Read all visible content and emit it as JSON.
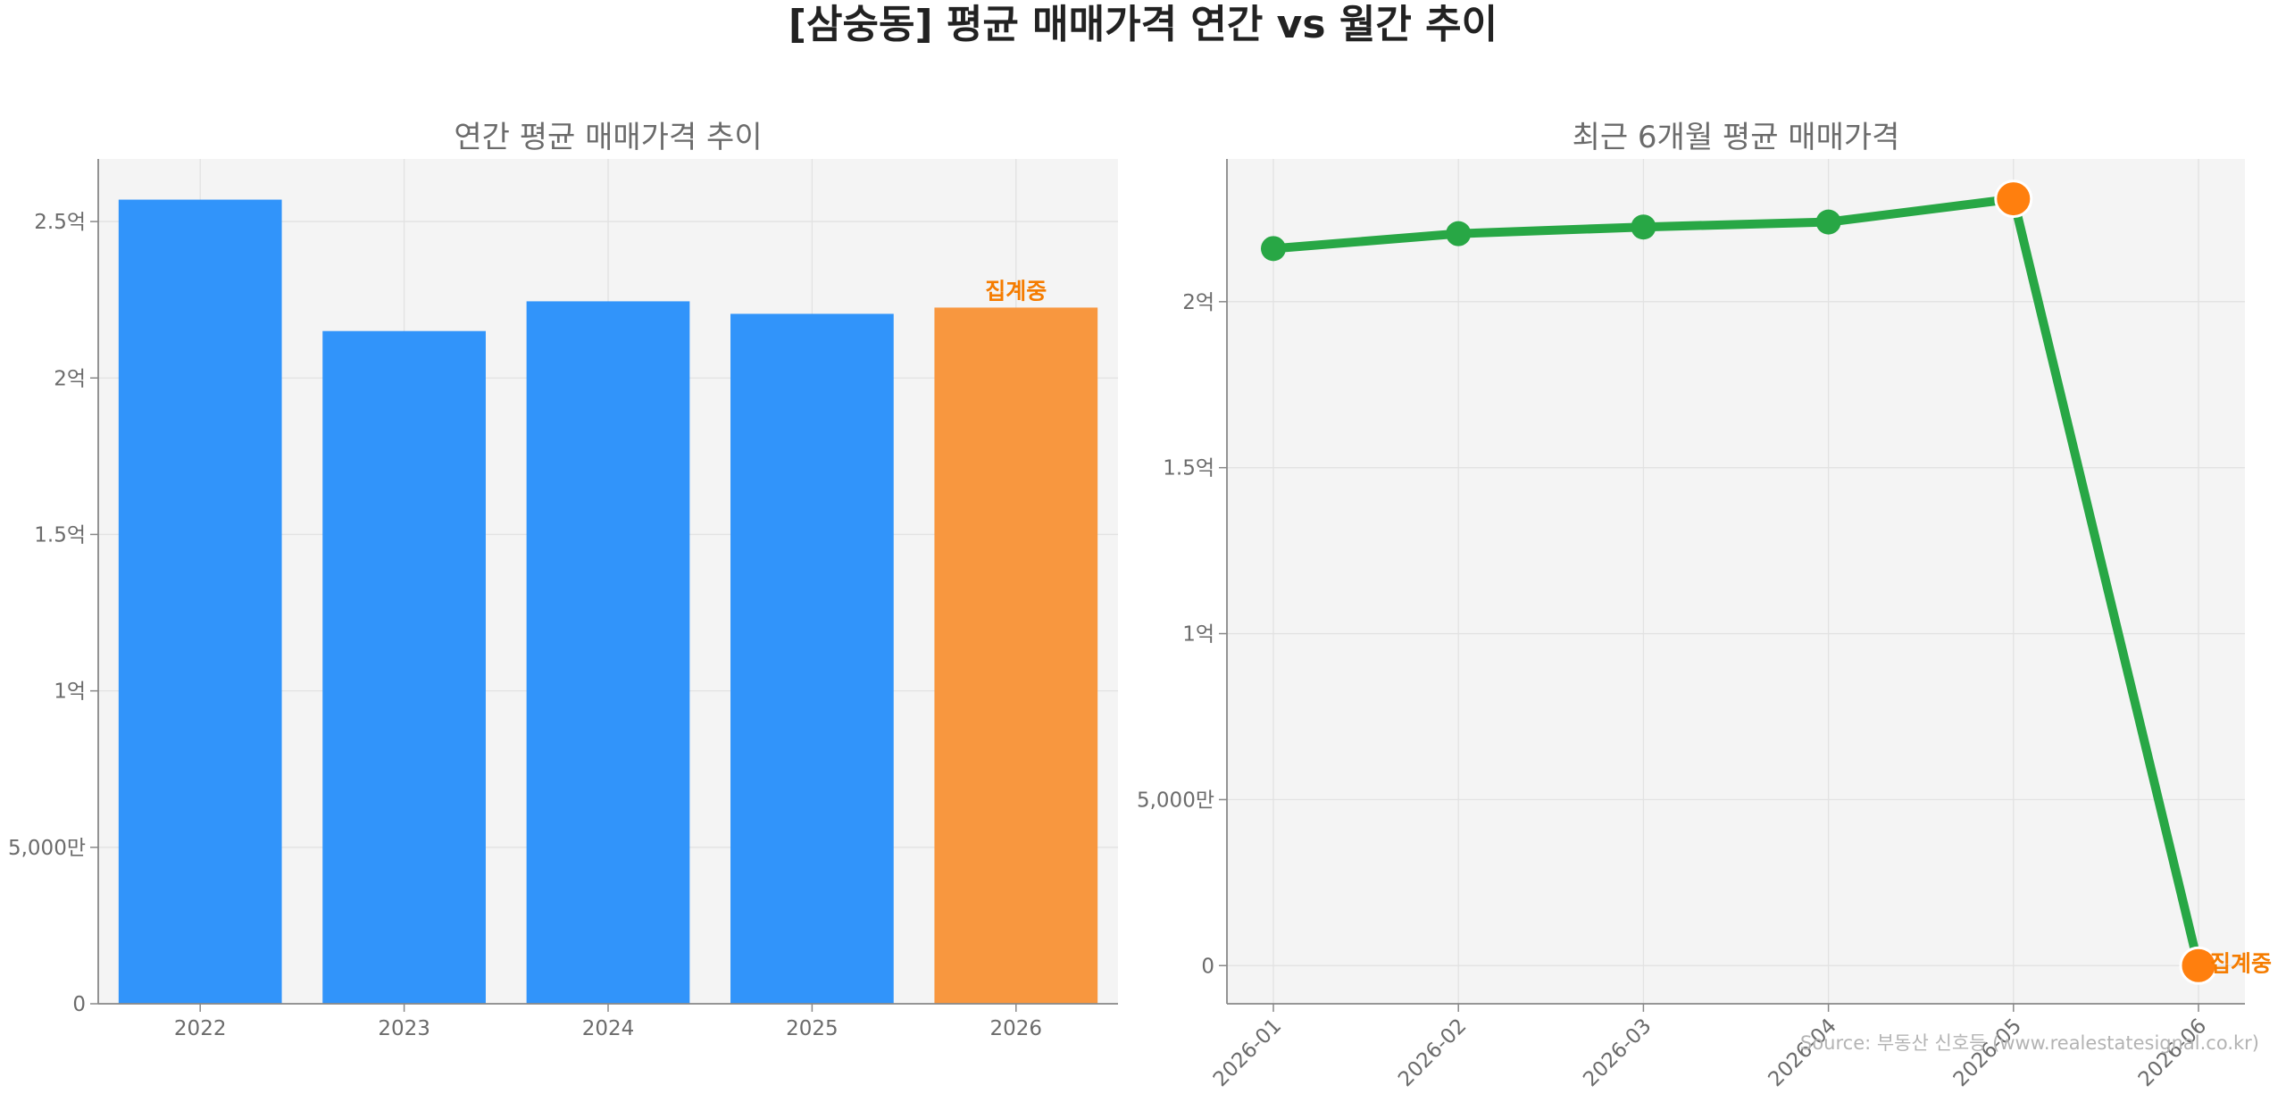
{
  "page": {
    "title": "[삼숭동] 평균 매매가격 연간 vs 월간 추이",
    "source": "Source: 부동산 신호등 (www.realestatesignal.co.kr)"
  },
  "chart_data": [
    {
      "type": "bar",
      "title": "연간 평균 매매가격 추이",
      "categories": [
        "2022",
        "2023",
        "2024",
        "2025",
        "2026"
      ],
      "values": [
        257000000,
        215000000,
        224500000,
        220500000,
        222500000
      ],
      "bar_colors": [
        "#3194fa",
        "#3194fa",
        "#3194fa",
        "#3194fa",
        "#f8973f"
      ],
      "ylim": [
        0,
        270000000
      ],
      "yticks": [
        0,
        50000000,
        100000000,
        150000000,
        200000000,
        250000000
      ],
      "ytick_labels": [
        "0",
        "5,000만",
        "1억",
        "1.5억",
        "2억",
        "2.5억"
      ],
      "annotation": {
        "category": "2026",
        "text": "집계중",
        "color": "#f57c00"
      },
      "grid": true,
      "background": "#f4f4f4"
    },
    {
      "type": "line",
      "title": "최근 6개월 평균 매매가격",
      "x": [
        "2026-01",
        "2026-02",
        "2026-03",
        "2026-04",
        "2026-05",
        "2026-06"
      ],
      "series": [
        {
          "values": [
            216000000,
            220500000,
            222500000,
            224000000,
            231000000,
            0
          ],
          "color": "#28a745"
        }
      ],
      "highlight_points": [
        {
          "x": "2026-05",
          "color": "#ff7f0e"
        },
        {
          "x": "2026-06",
          "color": "#ff7f0e"
        }
      ],
      "ylim": [
        -11500000,
        243000000
      ],
      "yticks": [
        0,
        50000000,
        100000000,
        150000000,
        200000000
      ],
      "ytick_labels": [
        "0",
        "5,000만",
        "1억",
        "1.5억",
        "2억"
      ],
      "annotation": {
        "x": "2026-06",
        "text": "집계중",
        "color": "#f57c00"
      },
      "grid": true,
      "background": "#f4f4f4"
    }
  ]
}
